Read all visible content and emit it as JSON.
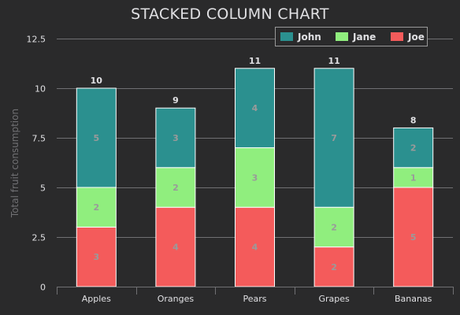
{
  "chart_data": {
    "type": "bar",
    "stacked": true,
    "title": "STACKED COLUMN CHART",
    "ylabel": "Total fruit consumption",
    "xlabel": "",
    "categories": [
      "Apples",
      "Oranges",
      "Pears",
      "Grapes",
      "Bananas"
    ],
    "series": [
      {
        "name": "John",
        "values": [
          5,
          3,
          4,
          7,
          2
        ],
        "color": "#2b908f"
      },
      {
        "name": "Jane",
        "values": [
          2,
          2,
          3,
          2,
          1
        ],
        "color": "#90ee7e"
      },
      {
        "name": "Joe",
        "values": [
          3,
          4,
          4,
          2,
          5
        ],
        "color": "#f45b5b"
      }
    ],
    "totals": [
      "10",
      "9",
      "11",
      "11",
      "8"
    ],
    "ylim": [
      0,
      12.5
    ],
    "yticks": [
      "0",
      "2.5",
      "5",
      "7.5",
      "10",
      "12.5"
    ],
    "grid": true,
    "legend_position": "top-right"
  }
}
